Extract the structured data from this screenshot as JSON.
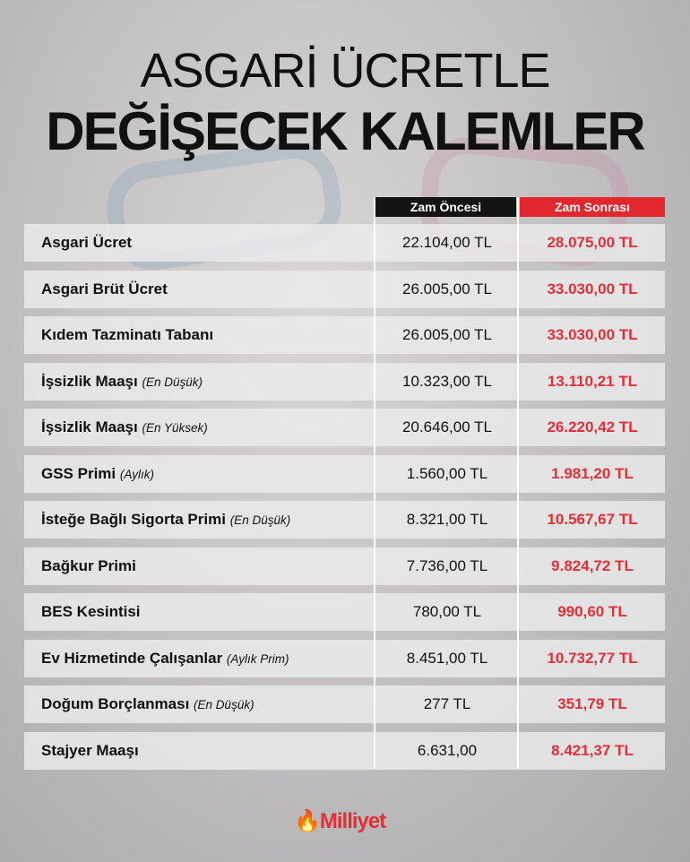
{
  "title_line1": "ASGARİ ÜCRETLE",
  "title_line2": "DEĞİŞECEK KALEMLER",
  "headers": {
    "before": "Zam Öncesi",
    "after": "Zam Sonrası"
  },
  "colors": {
    "accent": "#e0303a",
    "header_before": "#141414",
    "header_after": "#e2272e"
  },
  "rows": [
    {
      "label": "Asgari Ücret",
      "note": "",
      "before": "22.104,00 TL",
      "after": "28.075,00 TL"
    },
    {
      "label": "Asgari Brüt Ücret",
      "note": "",
      "before": "26.005,00 TL",
      "after": "33.030,00 TL"
    },
    {
      "label": "Kıdem Tazminatı Tabanı",
      "note": "",
      "before": "26.005,00 TL",
      "after": "33.030,00 TL"
    },
    {
      "label": "İşsizlik Maaşı",
      "note": "(En Düşük)",
      "before": "10.323,00 TL",
      "after": "13.110,21 TL"
    },
    {
      "label": "İşsizlik Maaşı",
      "note": "(En Yüksek)",
      "before": "20.646,00 TL",
      "after": "26.220,42 TL"
    },
    {
      "label": "GSS Primi",
      "note": "(Aylık)",
      "before": "1.560,00 TL",
      "after": "1.981,20 TL"
    },
    {
      "label": "İsteğe Bağlı Sigorta Primi",
      "note": "(En Düşük)",
      "before": "8.321,00 TL",
      "after": "10.567,67 TL"
    },
    {
      "label": "Bağkur Primi",
      "note": "",
      "before": "7.736,00 TL",
      "after": "9.824,72 TL"
    },
    {
      "label": "BES Kesintisi",
      "note": "",
      "before": "780,00 TL",
      "after": "990,60 TL"
    },
    {
      "label": "Ev Hizmetinde Çalışanlar",
      "note": "(Aylık Prim)",
      "before": "8.451,00 TL",
      "after": "10.732,77 TL"
    },
    {
      "label": "Doğum Borçlanması",
      "note": "(En Düşük)",
      "before": "277 TL",
      "after": "351,79 TL"
    },
    {
      "label": "Stajyer Maaşı",
      "note": "",
      "before": "6.631,00",
      "after": "8.421,37 TL"
    }
  ],
  "logo": "Milliyet"
}
